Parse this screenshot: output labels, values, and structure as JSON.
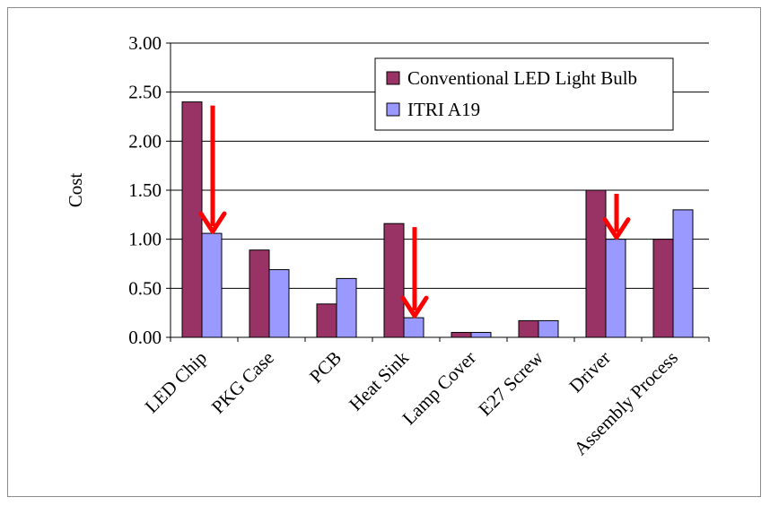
{
  "chart_data": {
    "type": "bar",
    "title": "",
    "xlabel": "",
    "ylabel": "Cost",
    "ylim": [
      0,
      3
    ],
    "yticks": [
      "0.00",
      "0.50",
      "1.00",
      "1.50",
      "2.00",
      "2.50",
      "3.00"
    ],
    "grid": true,
    "legend_position": "top-right",
    "categories": [
      "LED Chip",
      "PKG Case",
      "PCB",
      "Heat Sink",
      "Lamp Cover",
      "E27 Screw",
      "Driver",
      "Assembly Process"
    ],
    "series": [
      {
        "name": "Conventional LED Light Bulb",
        "color": "#993366",
        "values": [
          2.4,
          0.89,
          0.34,
          1.16,
          0.05,
          0.17,
          1.5,
          1.0
        ]
      },
      {
        "name": "ITRI A19",
        "color": "#9999ff",
        "values": [
          1.06,
          0.69,
          0.6,
          0.2,
          0.05,
          0.17,
          1.0,
          1.3
        ]
      }
    ],
    "annotations": [
      {
        "type": "arrow",
        "color": "#ff0000",
        "category": "LED Chip",
        "from": 2.4,
        "to": 1.06
      },
      {
        "type": "arrow",
        "color": "#ff0000",
        "category": "Heat Sink",
        "from": 1.16,
        "to": 0.2
      },
      {
        "type": "arrow",
        "color": "#ff0000",
        "category": "Driver",
        "from": 1.5,
        "to": 1.0
      }
    ]
  }
}
